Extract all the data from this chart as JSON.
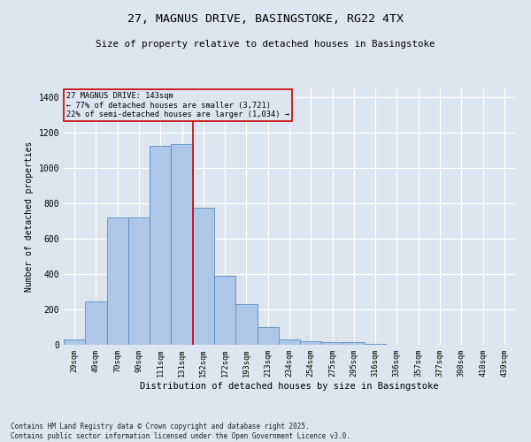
{
  "title_line1": "27, MAGNUS DRIVE, BASINGSTOKE, RG22 4TX",
  "title_line2": "Size of property relative to detached houses in Basingstoke",
  "xlabel": "Distribution of detached houses by size in Basingstoke",
  "ylabel": "Number of detached properties",
  "categories": [
    "29sqm",
    "49sqm",
    "70sqm",
    "90sqm",
    "111sqm",
    "131sqm",
    "152sqm",
    "172sqm",
    "193sqm",
    "213sqm",
    "234sqm",
    "254sqm",
    "275sqm",
    "295sqm",
    "316sqm",
    "336sqm",
    "357sqm",
    "377sqm",
    "398sqm",
    "418sqm",
    "439sqm"
  ],
  "values": [
    30,
    245,
    718,
    718,
    1125,
    1135,
    775,
    390,
    230,
    100,
    30,
    22,
    17,
    13,
    5,
    0,
    0,
    0,
    0,
    0,
    0
  ],
  "bar_color": "#aec6e8",
  "bar_edge_color": "#5a8fc0",
  "annotation_line1": "27 MAGNUS DRIVE: 143sqm",
  "annotation_line2": "← 77% of detached houses are smaller (3,721)",
  "annotation_line3": "22% of semi-detached houses are larger (1,034) →",
  "vline_position": 5.5,
  "vline_color": "#cc0000",
  "ylim": [
    0,
    1450
  ],
  "yticks": [
    0,
    200,
    400,
    600,
    800,
    1000,
    1200,
    1400
  ],
  "box_color": "#cc0000",
  "background_color": "#dde5f0",
  "footer_line1": "Contains HM Land Registry data © Crown copyright and database right 2025.",
  "footer_line2": "Contains public sector information licensed under the Open Government Licence v3.0."
}
